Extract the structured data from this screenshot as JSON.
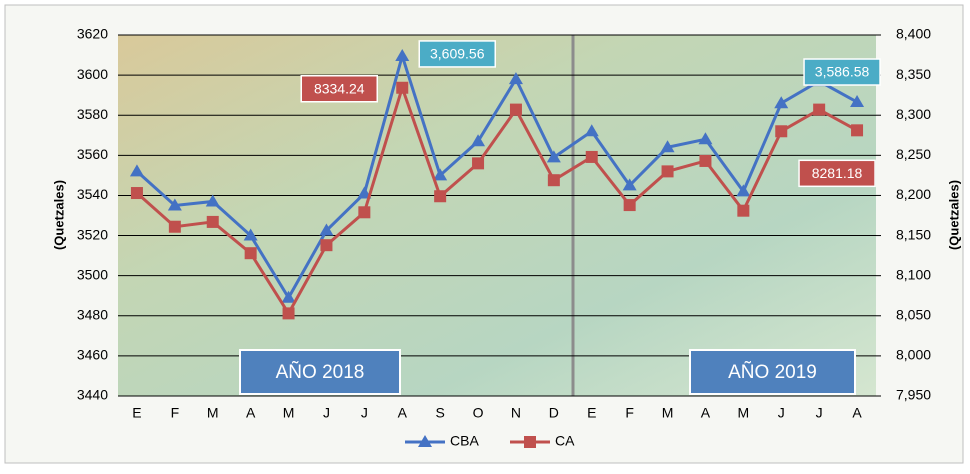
{
  "chart_data": {
    "type": "line",
    "categories": [
      "E",
      "F",
      "M",
      "A",
      "M",
      "J",
      "J",
      "A",
      "S",
      "O",
      "N",
      "D",
      "E",
      "F",
      "M",
      "A",
      "M",
      "J",
      "J",
      "A"
    ],
    "series": [
      {
        "name": "CBA",
        "color": "#4472c4",
        "marker": "triangle",
        "axis": "y",
        "values": [
          3552,
          3535,
          3537,
          3520,
          3489,
          3522.5,
          3541,
          3609.56,
          3550,
          3567,
          3598,
          3559,
          3572,
          3545,
          3564,
          3568,
          3542,
          3586,
          3597,
          3586.58
        ],
        "value_labels": [
          null,
          null,
          null,
          null,
          null,
          null,
          null,
          "3,609.56",
          null,
          null,
          null,
          null,
          null,
          null,
          null,
          null,
          null,
          null,
          null,
          "3,586.58"
        ],
        "label_color": "#4bacc6"
      },
      {
        "name": "CA",
        "color": "#c0504d",
        "marker": "square",
        "axis": "y2",
        "values": [
          8203,
          8161,
          8167,
          8128,
          8053,
          8138,
          8179,
          8334.24,
          8199,
          8240,
          8307,
          8219,
          8248,
          8188,
          8230,
          8243,
          8181,
          8280,
          8307,
          8281.18
        ],
        "value_labels": [
          null,
          null,
          null,
          null,
          null,
          null,
          null,
          "8334.24",
          null,
          null,
          null,
          null,
          null,
          null,
          null,
          null,
          null,
          null,
          null,
          "8281.18"
        ],
        "label_color": "#c0504d"
      }
    ],
    "ylabel": "(Quetzales)",
    "y2label": "(Quetzales)",
    "ylim": [
      3440,
      3620
    ],
    "yticks": [
      3440,
      3460,
      3480,
      3500,
      3520,
      3540,
      3560,
      3580,
      3600,
      3620
    ],
    "y2lim": [
      7950,
      8400
    ],
    "y2ticks": [
      {
        "value": 7950,
        "label": "7,950"
      },
      {
        "value": 8000,
        "label": "8,000"
      },
      {
        "value": 8050,
        "label": "8,050"
      },
      {
        "value": 8100,
        "label": "8,100"
      },
      {
        "value": 8150,
        "label": "8,150"
      },
      {
        "value": 8200,
        "label": "8,200"
      },
      {
        "value": 8250,
        "label": "8,250"
      },
      {
        "value": 8300,
        "label": "8,300"
      },
      {
        "value": 8350,
        "label": "8,350"
      },
      {
        "value": 8400,
        "label": "8,400"
      }
    ],
    "grid": true,
    "legend": "bottom",
    "annotations": [
      "AÑO 2018",
      "AÑO 2019"
    ]
  }
}
